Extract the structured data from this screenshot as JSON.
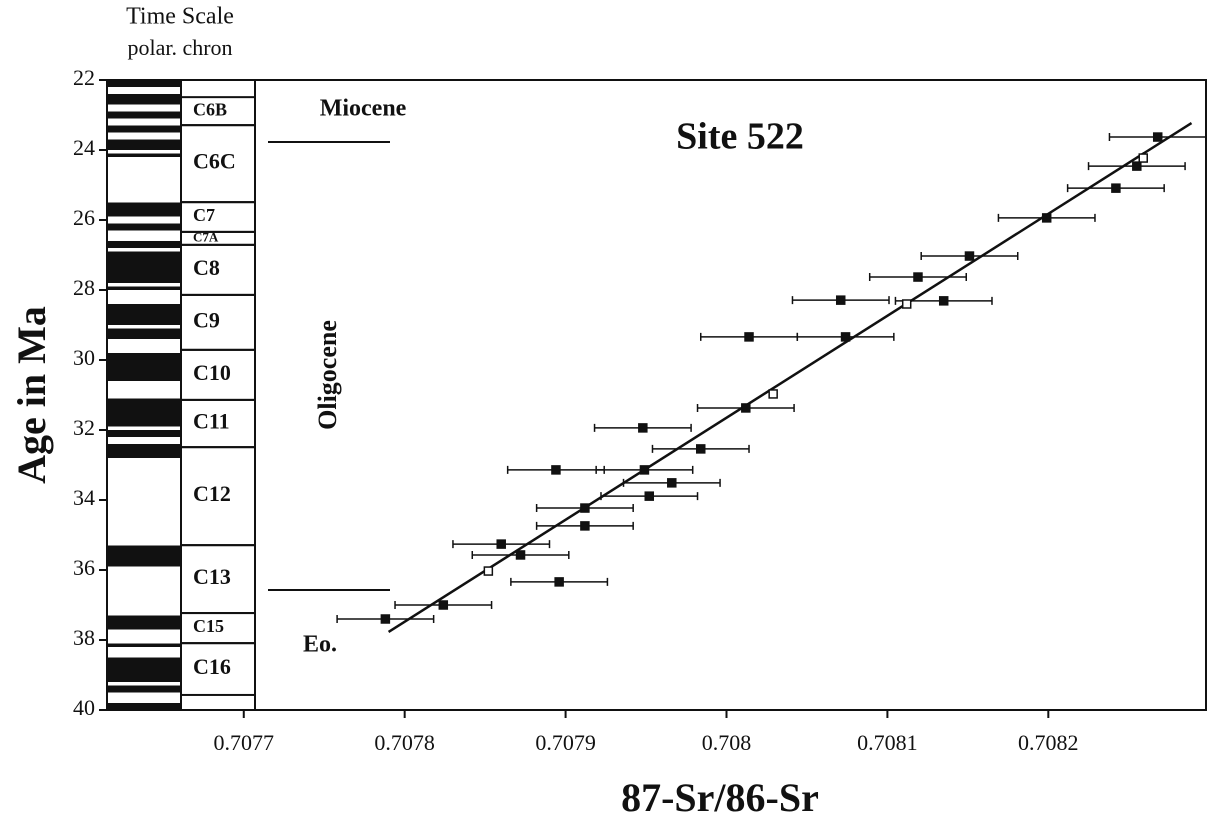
{
  "chart_data": {
    "type": "scatter",
    "title": "Site 522",
    "header": "Time Scale",
    "subheader": "polar. chron",
    "x_label": "87-Sr/86-Sr",
    "y_label": "Age in Ma",
    "xlim": [
      0.707615,
      0.708298
    ],
    "ylim": [
      22,
      40
    ],
    "y_inverted": true,
    "xticks": [
      0.7077,
      0.7078,
      0.7079,
      0.708,
      0.7081,
      0.7082
    ],
    "yticks": [
      22,
      24,
      26,
      28,
      30,
      32,
      34,
      36,
      38,
      40
    ],
    "color": "#111111",
    "series": [
      {
        "marker": "square-filled",
        "x": [
          0.708268,
          0.708255,
          0.708242,
          0.708199,
          0.708151,
          0.708119,
          0.708071,
          0.708135,
          0.708014,
          0.708074,
          0.708012,
          0.707948,
          0.707984,
          0.707894,
          0.707949,
          0.707966,
          0.707952,
          0.707912,
          0.707912,
          0.70786,
          0.707872,
          0.707896,
          0.707824,
          0.707788
        ],
        "values": [
          23.63,
          24.46,
          25.09,
          25.94,
          27.03,
          27.63,
          28.29,
          28.31,
          29.34,
          29.34,
          31.37,
          31.94,
          32.54,
          33.14,
          33.14,
          33.51,
          33.89,
          34.23,
          34.74,
          35.26,
          35.57,
          36.34,
          37.0,
          37.4
        ],
        "xerr": [
          3e-05,
          3e-05,
          3e-05,
          3e-05,
          3e-05,
          3e-05,
          3e-05,
          3e-05,
          3e-05,
          3e-05,
          3e-05,
          3e-05,
          3e-05,
          3e-05,
          3e-05,
          3e-05,
          3e-05,
          3e-05,
          3e-05,
          3e-05,
          3e-05,
          3e-05,
          3e-05,
          3e-05
        ]
      },
      {
        "marker": "square-open",
        "x": [
          0.708259,
          0.708112,
          0.708029,
          0.707852
        ],
        "values": [
          24.23,
          28.4,
          30.97,
          36.03
        ]
      }
    ],
    "fit_line": {
      "x": [
        0.70779,
        0.708289
      ],
      "values": [
        37.77,
        23.23
      ]
    },
    "chrons": [
      {
        "label": "C6B",
        "top": 22.49,
        "bottom": 23.29
      },
      {
        "label": "C6C",
        "top": 23.29,
        "bottom": 25.49
      },
      {
        "label": "C7",
        "top": 25.49,
        "bottom": 26.34
      },
      {
        "label": "C7A",
        "top": 26.34,
        "bottom": 26.71
      },
      {
        "label": "C8",
        "top": 26.71,
        "bottom": 28.14
      },
      {
        "label": "C9",
        "top": 28.14,
        "bottom": 29.71
      },
      {
        "label": "C10",
        "top": 29.71,
        "bottom": 31.14
      },
      {
        "label": "C11",
        "top": 31.14,
        "bottom": 32.49
      },
      {
        "label": "C12",
        "top": 32.49,
        "bottom": 35.29
      },
      {
        "label": "C13",
        "top": 35.29,
        "bottom": 37.23
      },
      {
        "label": "C15",
        "top": 37.23,
        "bottom": 38.09
      },
      {
        "label": "C16",
        "top": 38.09,
        "bottom": 39.57
      }
    ],
    "normal_polarity": [
      [
        22.0,
        22.2
      ],
      [
        22.4,
        22.7
      ],
      [
        22.9,
        23.1
      ],
      [
        23.3,
        23.5
      ],
      [
        23.7,
        24.0
      ],
      [
        24.1,
        24.2
      ],
      [
        25.5,
        25.9
      ],
      [
        26.1,
        26.3
      ],
      [
        26.6,
        26.8
      ],
      [
        26.9,
        27.8
      ],
      [
        27.9,
        28.0
      ],
      [
        28.4,
        29.0
      ],
      [
        29.1,
        29.4
      ],
      [
        29.8,
        30.6
      ],
      [
        31.1,
        31.9
      ],
      [
        32.0,
        32.2
      ],
      [
        32.4,
        32.8
      ],
      [
        35.3,
        35.9
      ],
      [
        37.3,
        37.7
      ],
      [
        38.1,
        38.2
      ],
      [
        38.5,
        39.2
      ],
      [
        39.3,
        39.5
      ],
      [
        39.8,
        40.0
      ]
    ],
    "epochs": [
      {
        "label": "Miocene",
        "boundary": 23.77
      },
      {
        "label": "Oligocene",
        "boundary": 36.57
      },
      {
        "label": "Eo."
      }
    ]
  }
}
